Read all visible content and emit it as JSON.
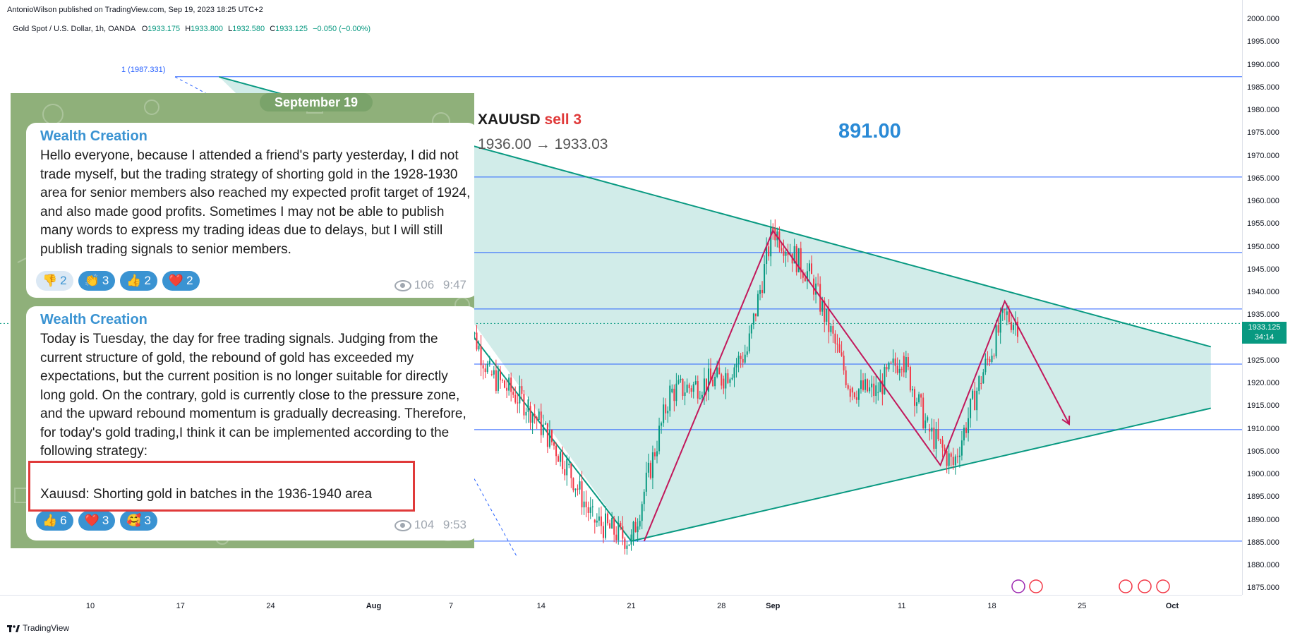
{
  "header": {
    "credit": "AntonioWilson published on TradingView.com, Sep 19, 2023 18:25 UTC+2",
    "symbol": "Gold Spot / U.S. Dollar, 1h, OANDA",
    "open_label": "O",
    "open": "1933.175",
    "high_label": "H",
    "high": "1933.800",
    "low_label": "L",
    "low": "1932.580",
    "close_label": "C",
    "close": "1933.125",
    "change": "−0.050 (−0.00%)"
  },
  "footer": {
    "brand": "TradingView"
  },
  "price_tag": {
    "price": "1933.125",
    "countdown": "34:14"
  },
  "fib": {
    "label": "1 (1987.331)"
  },
  "overlay": {
    "signal_symbol": "XAUUSD",
    "signal_action": "sell 3",
    "signal_range": "1936.00 → 1933.03",
    "signal_value": "891.00"
  },
  "telegram": {
    "date": "September 19",
    "messages": [
      {
        "author": "Wealth Creation",
        "text": "Hello everyone, because I attended a friend's party yesterday, I did not trade myself, but the trading strategy of shorting gold in the 1928-1930 area for senior members also reached my expected profit target of 1924, and also made good profits. Sometimes I may not be able to publish many words to express my trading ideas due to delays, but I will still publish trading signals to senior members.",
        "reactions": [
          {
            "emoji": "👎",
            "count": "2"
          },
          {
            "emoji": "👏",
            "count": "3"
          },
          {
            "emoji": "👍",
            "count": "2"
          },
          {
            "emoji": "❤️",
            "count": "2"
          }
        ],
        "views": "106",
        "time": "9:47"
      },
      {
        "author": "Wealth Creation",
        "text": "Today is Tuesday, the day for free trading signals. Judging from the current structure of gold, the rebound of gold has exceeded my expectations, but the current position is no longer suitable for directly long gold. On the contrary, gold is currently close to the pressure zone, and the upward rebound momentum is gradually decreasing. Therefore, for today's gold trading,I think it can be implemented according to the following strategy:",
        "highlight": "Xauusd: Shorting gold in batches in the 1936-1940 area",
        "reactions": [
          {
            "emoji": "👍",
            "count": "6"
          },
          {
            "emoji": "❤️",
            "count": "3"
          },
          {
            "emoji": "🥰",
            "count": "3"
          }
        ],
        "views": "104",
        "time": "9:53"
      }
    ]
  },
  "chart_data": {
    "type": "line",
    "title": "Gold Spot / U.S. Dollar, 1h, OANDA",
    "xlabel": "",
    "ylabel": "",
    "ylim": [
      1875,
      2000
    ],
    "y_ticks": [
      "2000.000",
      "1995.000",
      "1990.000",
      "1985.000",
      "1980.000",
      "1975.000",
      "1970.000",
      "1965.000",
      "1960.000",
      "1955.000",
      "1950.000",
      "1945.000",
      "1940.000",
      "1935.000",
      "1930.000",
      "1925.000",
      "1920.000",
      "1915.000",
      "1910.000",
      "1905.000",
      "1900.000",
      "1895.000",
      "1890.000",
      "1885.000",
      "1880.000",
      "1875.000"
    ],
    "x_ticks": [
      "10",
      "17",
      "24",
      "Aug",
      "7",
      "14",
      "21",
      "28",
      "Sep",
      "11",
      "18",
      "25",
      "Oct"
    ],
    "horizontal_levels": [
      1987.331,
      1965.3,
      1948.7,
      1936.3,
      1924.2,
      1909.8,
      1885.3
    ],
    "triangle": {
      "upper": [
        {
          "x": "Jul 20",
          "y": 1987.3
        },
        {
          "x": "Oct 5",
          "y": 1928
        }
      ],
      "lower": [
        {
          "x": "Aug 21",
          "y": 1885.3
        },
        {
          "x": "Oct 5",
          "y": 1914.5
        }
      ]
    },
    "series": [
      {
        "name": "",
        "color": "#089981",
        "points": [
          {
            "x": "Aug 8",
            "y": 1936
          },
          {
            "x": "Aug 10",
            "y": 1922
          },
          {
            "x": "Aug 13",
            "y": 1915
          },
          {
            "x": "Aug 16",
            "y": 1902
          },
          {
            "x": "Aug 18",
            "y": 1890
          },
          {
            "x": "Aug 21",
            "y": 1885.3
          },
          {
            "x": "Aug 24",
            "y": 1918
          },
          {
            "x": "Aug 28",
            "y": 1921
          },
          {
            "x": "Aug 30",
            "y": 1927
          },
          {
            "x": "Sep 1",
            "y": 1954
          },
          {
            "x": "Sep 4",
            "y": 1943
          },
          {
            "x": "Sep 7",
            "y": 1919
          },
          {
            "x": "Sep 9",
            "y": 1918
          },
          {
            "x": "Sep 11",
            "y": 1926
          },
          {
            "x": "Sep 13",
            "y": 1910
          },
          {
            "x": "Sep 15",
            "y": 1902
          },
          {
            "x": "Sep 17",
            "y": 1920
          },
          {
            "x": "Sep 19",
            "y": 1935
          },
          {
            "x": "Sep 20",
            "y": 1933.125
          }
        ]
      },
      {
        "name": "",
        "color": "#c2185b",
        "points": [
          {
            "x": "Aug 22",
            "y": 1885.3
          },
          {
            "x": "Sep 1",
            "y": 1953.5
          },
          {
            "x": "Sep 14",
            "y": 1902
          },
          {
            "x": "Sep 19",
            "y": 1938
          },
          {
            "x": "Sep 24",
            "y": 1911
          }
        ]
      }
    ]
  }
}
